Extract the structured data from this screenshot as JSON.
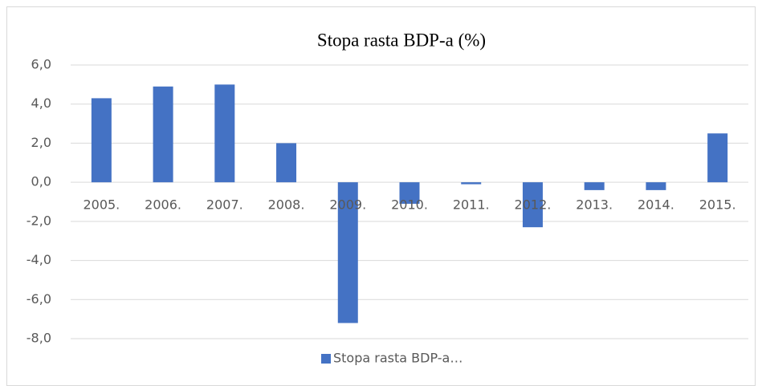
{
  "chart_data": {
    "type": "bar",
    "title": "Stopa rasta BDP-a (%)",
    "categories": [
      "2005.",
      "2006.",
      "2007.",
      "2008.",
      "2009.",
      "2010.",
      "2011.",
      "2012.",
      "2013.",
      "2014.",
      "2015."
    ],
    "series": [
      {
        "name": "Stopa rasta BDP-a…",
        "color": "#4472c4",
        "values": [
          4.3,
          4.9,
          5.0,
          2.0,
          -7.2,
          -1.1,
          -0.1,
          -2.3,
          -0.4,
          -0.4,
          2.5
        ]
      }
    ],
    "ylim": [
      -8,
      6
    ],
    "yticks": [
      {
        "value": -8,
        "label": "-8,0"
      },
      {
        "value": -6,
        "label": "-6,0"
      },
      {
        "value": -4,
        "label": "-4,0"
      },
      {
        "value": -2,
        "label": "-2,0"
      },
      {
        "value": 0,
        "label": "0,0"
      },
      {
        "value": 2,
        "label": "2,0"
      },
      {
        "value": 4,
        "label": "4,0"
      },
      {
        "value": 6,
        "label": "6,0"
      }
    ],
    "grid": true,
    "legend": "bottom"
  }
}
